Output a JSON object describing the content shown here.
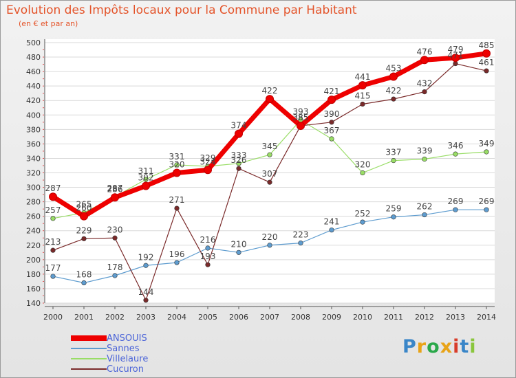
{
  "title": "Evolution des Impôts locaux pour la Commune par Habitant",
  "subtitle": "(en € et par an)",
  "logo": {
    "text": "Proxiti",
    "letters": [
      "P",
      "r",
      "o",
      "x",
      "i",
      "t",
      "i"
    ],
    "colors": [
      "#3a86c8",
      "#e8a317",
      "#2aa84a",
      "#e8a317",
      "#d83c2a",
      "#3a86c8",
      "#8ac63c"
    ]
  },
  "chart_data": {
    "type": "line",
    "title": "Evolution des Impôts locaux pour la Commune par Habitant",
    "xlabel": "",
    "ylabel": "",
    "x": [
      "2000",
      "2001",
      "2002",
      "2003",
      "2004",
      "2005",
      "2006",
      "2007",
      "2008",
      "2009",
      "2010",
      "2011",
      "2012",
      "2013",
      "2014"
    ],
    "ylim": [
      140,
      500
    ],
    "ytick_labels": [
      "140",
      "160",
      "180",
      "200",
      "220",
      "240",
      "260",
      "280",
      "300",
      "320",
      "340",
      "360",
      "380",
      "400",
      "420",
      "440",
      "460",
      "480",
      "500"
    ],
    "series": [
      {
        "name": "ANSOUIS",
        "color": "#ee0000",
        "values": [
          287,
          260,
          286,
          302,
          320,
          324,
          374,
          422,
          385,
          421,
          441,
          453,
          476,
          479,
          485
        ],
        "labels": [
          "287",
          "260",
          "286",
          "302",
          "320",
          "324",
          "374",
          "422",
          "385",
          "421",
          "441",
          "453",
          "476",
          "479",
          "485"
        ]
      },
      {
        "name": "Sannes",
        "color": "#5e9ccf",
        "values": [
          177,
          168,
          178,
          192,
          196,
          216,
          210,
          220,
          223,
          241,
          252,
          259,
          262,
          269,
          269
        ],
        "labels": [
          "177",
          "168",
          "178",
          "192",
          "196",
          "216",
          "210",
          "220",
          "223",
          "241",
          "252",
          "259",
          "262",
          "269",
          "269"
        ]
      },
      {
        "name": "Villelaure",
        "color": "#99dd66",
        "values": [
          257,
          265,
          287,
          311,
          331,
          329,
          333,
          345,
          393,
          367,
          320,
          337,
          339,
          346,
          349
        ],
        "labels": [
          "257",
          "265",
          "287",
          "311",
          "331",
          "329",
          "333",
          "345",
          "393",
          "367",
          "320",
          "337",
          "339",
          "346",
          "349"
        ]
      },
      {
        "name": "Cucuron",
        "color": "#7a2a2a",
        "values": [
          213,
          229,
          230,
          144,
          271,
          193,
          326,
          307,
          385,
          390,
          415,
          422,
          432,
          471,
          461
        ],
        "labels": [
          "213",
          "229",
          "230",
          "144",
          "271",
          "193",
          "326",
          "307",
          "385",
          "390",
          "415",
          "422",
          "432",
          "471",
          "461"
        ]
      }
    ]
  },
  "legend": [
    {
      "name": "ANSOUIS",
      "color": "#ee0000",
      "text_color": "#4a63d8"
    },
    {
      "name": "Sannes",
      "color": "#5e9ccf",
      "text_color": "#4a63d8"
    },
    {
      "name": "Villelaure",
      "color": "#99dd66",
      "text_color": "#4a63d8"
    },
    {
      "name": "Cucuron",
      "color": "#7a2a2a",
      "text_color": "#4a63d8"
    }
  ]
}
